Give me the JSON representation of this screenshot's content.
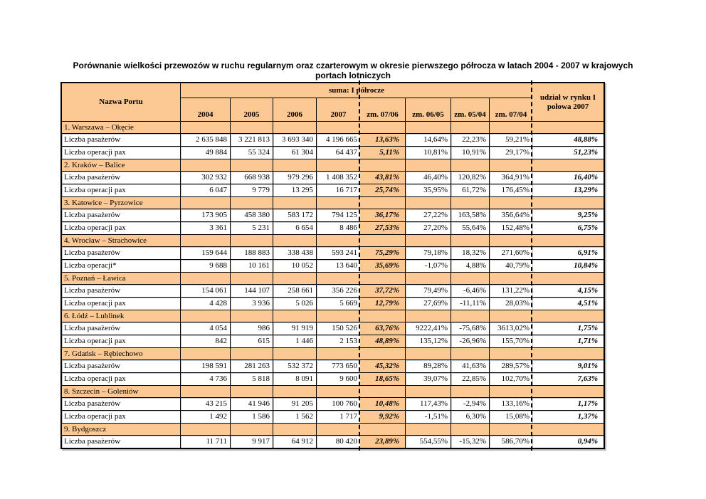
{
  "title": "Porównanie wielkości przewozów w ruchu regularnym oraz czarterowym w okresie pierwszego półrocza w latach 2004 - 2007 w krajowych portach lotniczych",
  "colors": {
    "table_accent": "#FCC894"
  },
  "table": {
    "header": {
      "nazwa_portu": "Nazwa Portu",
      "suma": "suma: I półrocze",
      "udzial": "udział w rynku I połowa 2007",
      "columns": [
        "2004",
        "2005",
        "2006",
        "2007",
        "zm. 07/06",
        "zm. 06/05",
        "zm. 05/04",
        "zm. 07/04"
      ]
    },
    "groups": [
      {
        "name": "1. Warszawa – Okęcie",
        "rows": [
          {
            "label": "Liczba pasażerów",
            "values": [
              "2 635 848",
              "3 221 813",
              "3 693 340",
              "4 196 665",
              "13,63%",
              "14,64%",
              "22,23%",
              "59,21%",
              "48,88%"
            ]
          },
          {
            "label": "Liczba operacji pax",
            "values": [
              "49 884",
              "55 324",
              "61 304",
              "64 437",
              "5,11%",
              "10,81%",
              "10,91%",
              "29,17%",
              "51,23%"
            ]
          }
        ]
      },
      {
        "name": "2. Kraków – Balice",
        "rows": [
          {
            "label": "Liczba pasażerów",
            "values": [
              "302 932",
              "668 938",
              "979 296",
              "1 408 352",
              "43,81%",
              "46,40%",
              "120,82%",
              "364,91%",
              "16,40%"
            ]
          },
          {
            "label": "Liczba operacji pax",
            "values": [
              "6 047",
              "9 779",
              "13 295",
              "16 717",
              "25,74%",
              "35,95%",
              "61,72%",
              "176,45%",
              "13,29%"
            ]
          }
        ]
      },
      {
        "name": "3. Katowice – Pyrzowice",
        "rows": [
          {
            "label": "Liczba pasażerów",
            "values": [
              "173 905",
              "458 380",
              "583 172",
              "794 125",
              "36,17%",
              "27,22%",
              "163,58%",
              "356,64%",
              "9,25%"
            ]
          },
          {
            "label": "Liczba operacji pax",
            "values": [
              "3 361",
              "5 231",
              "6 654",
              "8 486",
              "27,53%",
              "27,20%",
              "55,64%",
              "152,48%",
              "6,75%"
            ]
          }
        ]
      },
      {
        "name": "4. Wrocław – Strachowice",
        "rows": [
          {
            "label": "Liczba pasażerów",
            "values": [
              "159 644",
              "188 883",
              "338 438",
              "593 241",
              "75,29%",
              "79,18%",
              "18,32%",
              "271,60%",
              "6,91%"
            ]
          },
          {
            "label": "Liczba operacji*",
            "values": [
              "9 688",
              "10 161",
              "10 052",
              "13 640",
              "35,69%",
              "-1,07%",
              "4,88%",
              "40,79%",
              "10,84%"
            ]
          }
        ]
      },
      {
        "name": "5. Poznań – Ławica",
        "rows": [
          {
            "label": "Liczba pasażerów",
            "values": [
              "154 061",
              "144 107",
              "258 661",
              "356 226",
              "37,72%",
              "79,49%",
              "-6,46%",
              "131,22%",
              "4,15%"
            ]
          },
          {
            "label": "Liczba operacji pax",
            "values": [
              "4 428",
              "3 936",
              "5 026",
              "5 669",
              "12,79%",
              "27,69%",
              "-11,11%",
              "28,03%",
              "4,51%"
            ]
          }
        ]
      },
      {
        "name": "6. Łódź – Lublinek",
        "rows": [
          {
            "label": "Liczba pasażerów",
            "values": [
              "4 054",
              "986",
              "91 919",
              "150 526",
              "63,76%",
              "9222,41%",
              "-75,68%",
              "3613,02%",
              "1,75%"
            ]
          },
          {
            "label": "Liczba operacji pax",
            "values": [
              "842",
              "615",
              "1 446",
              "2 153",
              "48,89%",
              "135,12%",
              "-26,96%",
              "155,70%",
              "1,71%"
            ]
          }
        ]
      },
      {
        "name": "7. Gdańsk – Rębiechowo",
        "rows": [
          {
            "label": "Liczba pasażerów",
            "values": [
              "198 591",
              "281 263",
              "532 372",
              "773 650",
              "45,32%",
              "89,28%",
              "41,63%",
              "289,57%",
              "9,01%"
            ]
          },
          {
            "label": "Liczba operacji pax",
            "values": [
              "4 736",
              "5 818",
              "8 091",
              "9 600",
              "18,65%",
              "39,07%",
              "22,85%",
              "102,70%",
              "7,63%"
            ]
          }
        ]
      },
      {
        "name": "8. Szczecin – Goleniów",
        "rows": [
          {
            "label": "Liczba pasażerów",
            "values": [
              "43 215",
              "41 946",
              "91 205",
              "100 760",
              "10,48%",
              "117,43%",
              "-2,94%",
              "133,16%",
              "1,17%"
            ]
          },
          {
            "label": "Liczba operacji pax",
            "values": [
              "1 492",
              "1 586",
              "1 562",
              "1 717",
              "9,92%",
              "-1,51%",
              "6,30%",
              "15,08%",
              "1,37%"
            ]
          }
        ]
      },
      {
        "name": "9. Bydgoszcz",
        "rows": [
          {
            "label": "Liczba pasażerów",
            "values": [
              "11 711",
              "9 917",
              "64 912",
              "80 420",
              "23,89%",
              "554,55%",
              "-15,32%",
              "586,70%",
              "0,94%"
            ]
          }
        ]
      }
    ]
  }
}
